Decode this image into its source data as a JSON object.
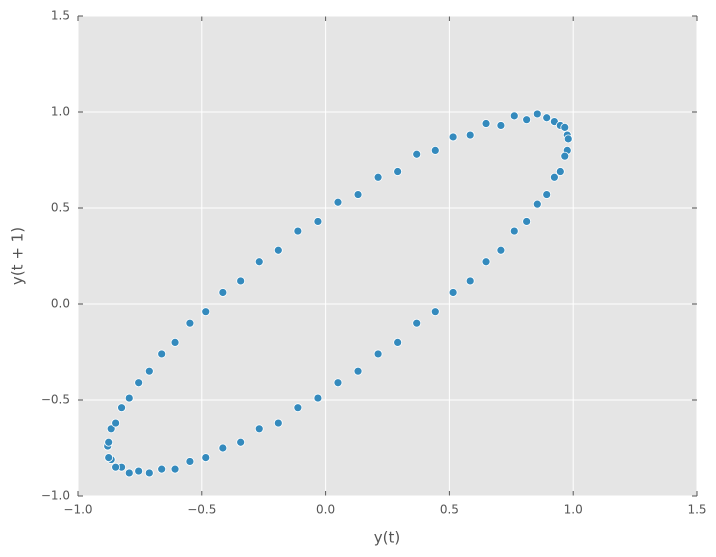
{
  "chart_data": {
    "type": "scatter",
    "x_label": "y(t)",
    "y_label": "y(t + 1)",
    "color": "#348abd",
    "grid": true,
    "xlim": [
      -1.0,
      1.5
    ],
    "ylim": [
      -1.0,
      1.5
    ],
    "xticks": [
      {
        "value": -1.0,
        "label": "−1.0"
      },
      {
        "value": -0.5,
        "label": "−0.5"
      },
      {
        "value": 0,
        "label": "0.0"
      },
      0.5,
      {
        "value": 1.0,
        "label": "1.0"
      },
      1.5
    ],
    "yticks": [
      {
        "value": -1.0,
        "label": "−1.0"
      },
      {
        "value": -0.5,
        "label": "−0.5"
      },
      {
        "value": 0,
        "label": "0.0"
      },
      0.5,
      {
        "value": 1.0,
        "label": "1.0"
      },
      1.5
    ],
    "x": [
      0.05,
      0.131,
      0.212,
      0.291,
      0.368,
      0.443,
      0.515,
      0.584,
      0.648,
      0.708,
      0.762,
      0.812,
      0.855,
      0.893,
      0.924,
      0.948,
      0.966,
      0.976,
      0.98,
      0.976,
      0.966,
      0.948,
      0.924,
      0.893,
      0.855,
      0.812,
      0.762,
      0.708,
      0.648,
      0.584,
      0.515,
      0.443,
      0.368,
      0.291,
      0.212,
      0.131,
      0.05,
      -0.031,
      -0.112,
      -0.191,
      -0.268,
      -0.343,
      -0.415,
      -0.484,
      -0.548,
      -0.608,
      -0.662,
      -0.712,
      -0.755,
      -0.793,
      -0.824,
      -0.848,
      -0.866,
      -0.876,
      -0.88,
      -0.876,
      -0.866,
      -0.848,
      -0.824,
      -0.793,
      -0.755,
      -0.712,
      -0.662,
      -0.608,
      -0.548,
      -0.484,
      -0.415,
      -0.343,
      -0.268,
      -0.191,
      -0.112,
      -0.031
    ],
    "y": [
      0.53,
      0.57,
      0.66,
      0.69,
      0.78,
      0.8,
      0.87,
      0.88,
      0.94,
      0.93,
      0.98,
      0.96,
      0.99,
      0.97,
      0.95,
      0.93,
      0.92,
      0.88,
      0.86,
      0.8,
      0.77,
      0.69,
      0.66,
      0.57,
      0.52,
      0.43,
      0.38,
      0.28,
      0.22,
      0.12,
      0.06,
      -0.04,
      -0.1,
      -0.2,
      -0.26,
      -0.35,
      -0.41,
      -0.49,
      -0.54,
      -0.62,
      -0.65,
      -0.72,
      -0.75,
      -0.8,
      -0.82,
      -0.86,
      -0.86,
      -0.88,
      -0.87,
      -0.88,
      -0.85,
      -0.85,
      -0.81,
      -0.8,
      -0.74,
      -0.72,
      -0.65,
      -0.62,
      -0.54,
      -0.49,
      -0.41,
      -0.35,
      -0.26,
      -0.2,
      -0.1,
      -0.04,
      0.06,
      0.12,
      0.22,
      0.28,
      0.38,
      0.43
    ]
  }
}
